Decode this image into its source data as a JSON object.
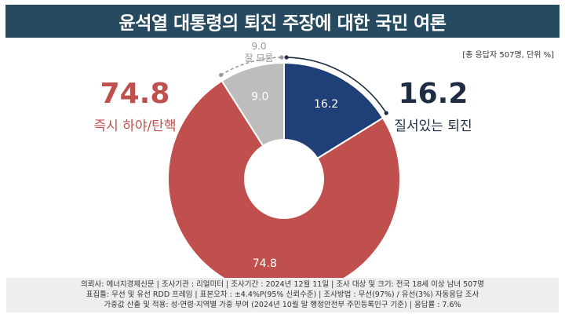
{
  "header": {
    "title": "윤석열 대통령의 퇴진 주장에 대한 국민 여론"
  },
  "meta_note": "[총 응답자 507명, 단위 %]",
  "chart_data": {
    "type": "pie",
    "title": "윤석열 대통령의 퇴진 주장에 대한 국민 여론",
    "unit": "%",
    "slices": [
      {
        "label": "질서있는 퇴진",
        "value": 16.2,
        "color": "#1f3f77"
      },
      {
        "label": "즉시 하야/탄핵",
        "value": 74.8,
        "color": "#c0504d"
      },
      {
        "label": "잘 모름",
        "value": 9.0,
        "color": "#bdbdbd"
      }
    ],
    "callouts": {
      "left": {
        "value": "74.8",
        "label": "즉시 하야/탄핵",
        "color": "#c0504d"
      },
      "right": {
        "value": "16.2",
        "label": "질서있는 퇴진",
        "color": "#1f2d44"
      },
      "top": {
        "value": "9.0",
        "label": "잘 모름",
        "color": "#9a9a9a"
      }
    },
    "slice_labels": [
      "16.2",
      "74.8",
      "9.0"
    ]
  },
  "footer": {
    "line1": "의뢰사: 에너지경제신문 | 조사기관 : 리얼미터 | 조사기간 : 2024년 12월 11일 | 조사 대상 및 크기: 전국 18세 이상 남녀 507명",
    "line2": "표집틀: 무선 및 유선 RDD 프레임 | 표본오차 : ±4.4%P(95% 신뢰수준) | 조사방법 : 무선(97%) / 유선(3%) 자동응답 조사",
    "line3": "가중값 산출 및 적용: 성·연령·지역별 가중 부여 (2024년 10월 말 행정안전부 주민등록인구 기준) | 응답률 : 7.6%"
  }
}
